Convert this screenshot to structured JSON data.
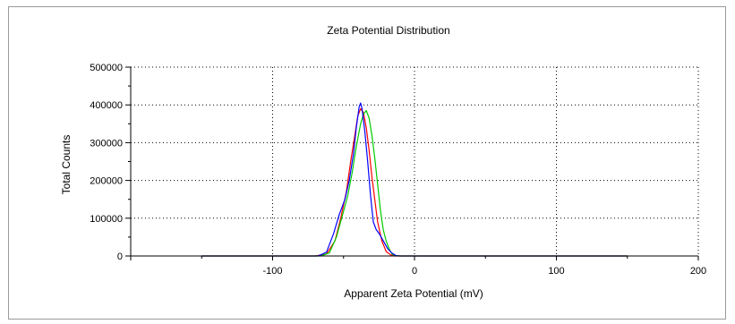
{
  "chart_data": {
    "type": "line",
    "title": "Zeta Potential Distribution",
    "xlabel": "Apparent Zeta Potential (mV)",
    "ylabel": "Total Counts",
    "xlim": [
      -200,
      200
    ],
    "ylim": [
      0,
      500000
    ],
    "xticks": [
      -100,
      0,
      100,
      200
    ],
    "xtick_labels": [
      "-100",
      "0",
      "100",
      "200"
    ],
    "yticks": [
      0,
      100000,
      200000,
      300000,
      400000,
      500000
    ],
    "ytick_labels": [
      "0",
      "100000",
      "200000",
      "300000",
      "400000",
      "500000"
    ],
    "grid": true,
    "grid_style": "dotted",
    "series": [
      {
        "color": "#ff0000",
        "x": [
          -150,
          -70,
          -62,
          -56,
          -52,
          -48,
          -45,
          -42,
          -40,
          -38,
          -36,
          -34,
          -32,
          -30,
          -28,
          -26,
          -23,
          -20,
          -17,
          -14,
          -10,
          0,
          150
        ],
        "y": [
          0,
          0,
          5000,
          40000,
          100000,
          170000,
          250000,
          320000,
          370000,
          390000,
          380000,
          340000,
          280000,
          210000,
          150000,
          90000,
          40000,
          12000,
          3000,
          0,
          0,
          0,
          0
        ]
      },
      {
        "color": "#00cc00",
        "x": [
          -150,
          -66,
          -60,
          -55,
          -51,
          -47,
          -44,
          -41,
          -38,
          -36,
          -34,
          -32,
          -30,
          -28,
          -26,
          -24,
          -22,
          -20,
          -18,
          -16,
          -14,
          -10,
          0,
          150
        ],
        "y": [
          0,
          0,
          8000,
          50000,
          105000,
          160000,
          220000,
          290000,
          350000,
          375000,
          385000,
          365000,
          320000,
          260000,
          190000,
          120000,
          70000,
          40000,
          20000,
          6000,
          1000,
          0,
          0,
          0
        ]
      },
      {
        "color": "#0000ff",
        "x": [
          -150,
          -68,
          -62,
          -57,
          -53,
          -49,
          -46,
          -43,
          -41,
          -39,
          -38,
          -37,
          -35,
          -33,
          -31,
          -29,
          -27,
          -25,
          -22,
          -19,
          -16,
          -13,
          -10,
          0,
          150
        ],
        "y": [
          0,
          0,
          10000,
          60000,
          110000,
          150000,
          200000,
          270000,
          340000,
          395000,
          405000,
          390000,
          330000,
          250000,
          160000,
          90000,
          70000,
          60000,
          40000,
          20000,
          8000,
          1000,
          0,
          0,
          0
        ]
      }
    ]
  }
}
